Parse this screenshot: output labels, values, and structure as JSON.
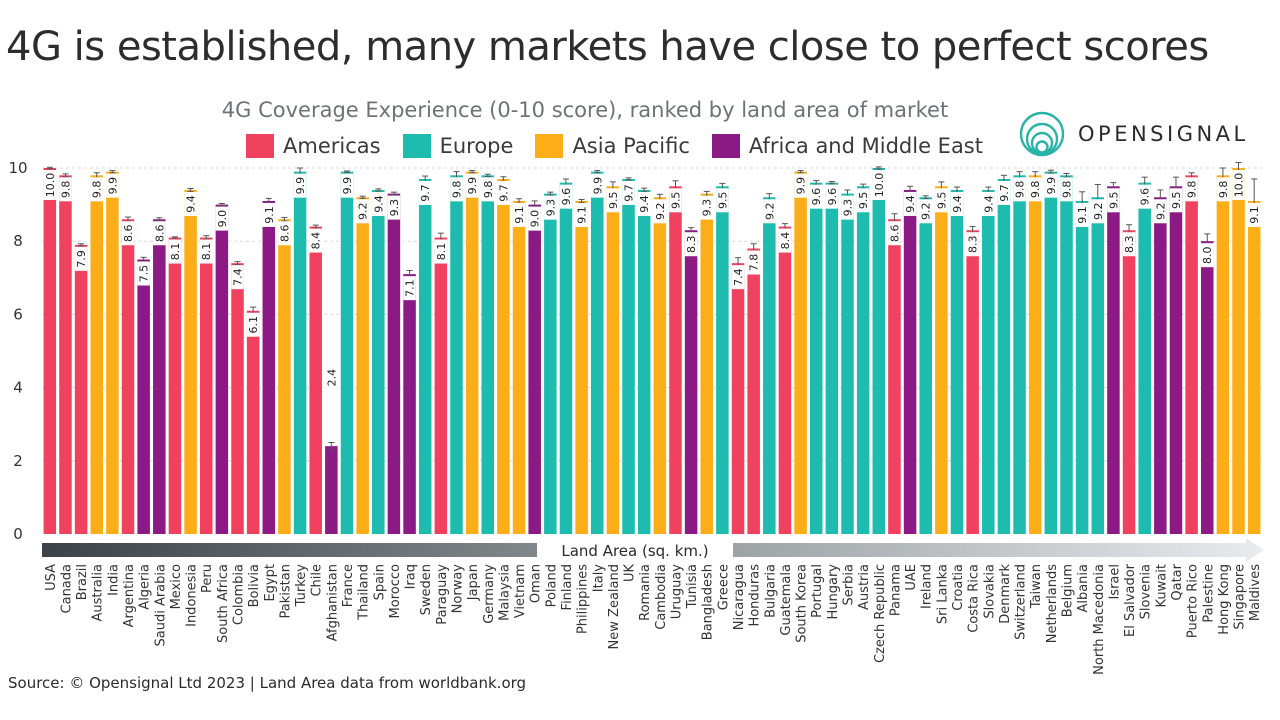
{
  "title": "4G is established, many markets have close to perfect scores",
  "subtitle": "4G Coverage Experience (0-10 score), ranked by land area of market",
  "brand": "OPENSIGNAL",
  "source": "Source: © Opensignal Ltd 2023 | Land Area data from worldbank.org",
  "colors": {
    "americas": "#f0425f",
    "europe": "#1dbcae",
    "asia_pacific": "#fbae17",
    "africa_middle_east": "#8b1a85",
    "error_bar": "#555555",
    "gridline": "#d9d9d9",
    "arrow_dark": "#3c4246",
    "arrow_light": "#e8ecee",
    "logo": "#2ab3a7"
  },
  "chart_data": {
    "type": "bar",
    "title": "4G Coverage Experience (0-10 score), ranked by land area of market",
    "xlabel": "Land Area (sq. km.)",
    "ylabel": "",
    "ylim": [
      0,
      10
    ],
    "yticks": [
      0,
      2,
      4,
      6,
      8,
      10
    ],
    "grid": true,
    "legend_position": "top",
    "legend": [
      {
        "key": "americas",
        "label": "Americas"
      },
      {
        "key": "europe",
        "label": "Europe"
      },
      {
        "key": "asia_pacific",
        "label": "Asia Pacific"
      },
      {
        "key": "africa_middle_east",
        "label": "Africa and Middle East"
      }
    ],
    "bars": [
      {
        "country": "USA",
        "value": 10.0,
        "label": "10.0",
        "region": "americas",
        "err": 0.02
      },
      {
        "country": "Canada",
        "value": 9.8,
        "label": "9.8",
        "region": "americas",
        "err": 0.04
      },
      {
        "country": "Brazil",
        "value": 7.9,
        "label": "7.9",
        "region": "americas",
        "err": 0.03
      },
      {
        "country": "Australia",
        "value": 9.8,
        "label": "9.8",
        "region": "asia_pacific",
        "err": 0.07
      },
      {
        "country": "India",
        "value": 9.9,
        "label": "9.9",
        "region": "asia_pacific",
        "err": 0.03
      },
      {
        "country": "Argentina",
        "value": 8.6,
        "label": "8.6",
        "region": "americas",
        "err": 0.06
      },
      {
        "country": "Algeria",
        "value": 7.5,
        "label": "7.5",
        "region": "africa_middle_east",
        "err": 0.06
      },
      {
        "country": "Saudi Arabia",
        "value": 8.6,
        "label": "8.6",
        "region": "africa_middle_east",
        "err": 0.04
      },
      {
        "country": "Mexico",
        "value": 8.1,
        "label": "8.1",
        "region": "americas",
        "err": 0.02
      },
      {
        "country": "Indonesia",
        "value": 9.4,
        "label": "9.4",
        "region": "asia_pacific",
        "err": 0.04
      },
      {
        "country": "Peru",
        "value": 8.1,
        "label": "8.1",
        "region": "americas",
        "err": 0.05
      },
      {
        "country": "South Africa",
        "value": 9.0,
        "label": "9.0",
        "region": "africa_middle_east",
        "err": 0.03
      },
      {
        "country": "Colombia",
        "value": 7.4,
        "label": "7.4",
        "region": "americas",
        "err": 0.04
      },
      {
        "country": "Bolivia",
        "value": 6.1,
        "label": "6.1",
        "region": "americas",
        "err": 0.1
      },
      {
        "country": "Egypt",
        "value": 9.1,
        "label": "9.1",
        "region": "africa_middle_east",
        "err": 0.07
      },
      {
        "country": "Pakistan",
        "value": 8.6,
        "label": "8.6",
        "region": "asia_pacific",
        "err": 0.05
      },
      {
        "country": "Turkey",
        "value": 9.9,
        "label": "9.9",
        "region": "europe",
        "err": 0.1
      },
      {
        "country": "Chile",
        "value": 8.4,
        "label": "8.4",
        "region": "americas",
        "err": 0.04
      },
      {
        "country": "Afghanistan",
        "value": 2.4,
        "label": "2.4",
        "region": "africa_middle_east",
        "err": 0.1
      },
      {
        "country": "France",
        "value": 9.9,
        "label": "9.9",
        "region": "europe",
        "err": 0.02
      },
      {
        "country": "Thailand",
        "value": 9.2,
        "label": "9.2",
        "region": "asia_pacific",
        "err": 0.03
      },
      {
        "country": "Spain",
        "value": 9.4,
        "label": "9.4",
        "region": "europe",
        "err": 0.03
      },
      {
        "country": "Morocco",
        "value": 9.3,
        "label": "9.3",
        "region": "africa_middle_east",
        "err": 0.04
      },
      {
        "country": "Iraq",
        "value": 7.1,
        "label": "7.1",
        "region": "africa_middle_east",
        "err": 0.1
      },
      {
        "country": "Sweden",
        "value": 9.7,
        "label": "9.7",
        "region": "europe",
        "err": 0.08
      },
      {
        "country": "Paraguay",
        "value": 8.1,
        "label": "8.1",
        "region": "americas",
        "err": 0.12
      },
      {
        "country": "Norway",
        "value": 9.8,
        "label": "9.8",
        "region": "europe",
        "err": 0.1
      },
      {
        "country": "Japan",
        "value": 9.9,
        "label": "9.9",
        "region": "asia_pacific",
        "err": 0.03
      },
      {
        "country": "Germany",
        "value": 9.8,
        "label": "9.8",
        "region": "europe",
        "err": 0.03
      },
      {
        "country": "Malaysia",
        "value": 9.7,
        "label": "9.7",
        "region": "asia_pacific",
        "err": 0.06
      },
      {
        "country": "Vietnam",
        "value": 9.1,
        "label": "9.1",
        "region": "asia_pacific",
        "err": 0.06
      },
      {
        "country": "Oman",
        "value": 9.0,
        "label": "9.0",
        "region": "africa_middle_east",
        "err": 0.1
      },
      {
        "country": "Poland",
        "value": 9.3,
        "label": "9.3",
        "region": "europe",
        "err": 0.04
      },
      {
        "country": "Finland",
        "value": 9.6,
        "label": "9.6",
        "region": "europe",
        "err": 0.1
      },
      {
        "country": "Philippines",
        "value": 9.1,
        "label": "9.1",
        "region": "asia_pacific",
        "err": 0.04
      },
      {
        "country": "Italy",
        "value": 9.9,
        "label": "9.9",
        "region": "europe",
        "err": 0.03
      },
      {
        "country": "New Zealand",
        "value": 9.5,
        "label": "9.5",
        "region": "asia_pacific",
        "err": 0.12
      },
      {
        "country": "UK",
        "value": 9.7,
        "label": "9.7",
        "region": "europe",
        "err": 0.03
      },
      {
        "country": "Romania",
        "value": 9.4,
        "label": "9.4",
        "region": "europe",
        "err": 0.05
      },
      {
        "country": "Cambodia",
        "value": 9.2,
        "label": "9.2",
        "region": "asia_pacific",
        "err": 0.08
      },
      {
        "country": "Uruguay",
        "value": 9.5,
        "label": "9.5",
        "region": "americas",
        "err": 0.15
      },
      {
        "country": "Tunisia",
        "value": 8.3,
        "label": "8.3",
        "region": "africa_middle_east",
        "err": 0.07
      },
      {
        "country": "Bangladesh",
        "value": 9.3,
        "label": "9.3",
        "region": "asia_pacific",
        "err": 0.06
      },
      {
        "country": "Greece",
        "value": 9.5,
        "label": "9.5",
        "region": "europe",
        "err": 0.08
      },
      {
        "country": "Nicaragua",
        "value": 7.4,
        "label": "7.4",
        "region": "americas",
        "err": 0.15
      },
      {
        "country": "Honduras",
        "value": 7.8,
        "label": "7.8",
        "region": "americas",
        "err": 0.13
      },
      {
        "country": "Bulgaria",
        "value": 9.2,
        "label": "9.2",
        "region": "europe",
        "err": 0.1
      },
      {
        "country": "Guatemala",
        "value": 8.4,
        "label": "8.4",
        "region": "americas",
        "err": 0.08
      },
      {
        "country": "South Korea",
        "value": 9.9,
        "label": "9.9",
        "region": "asia_pacific",
        "err": 0.03
      },
      {
        "country": "Portugal",
        "value": 9.6,
        "label": "9.6",
        "region": "europe",
        "err": 0.06
      },
      {
        "country": "Hungary",
        "value": 9.6,
        "label": "9.6",
        "region": "europe",
        "err": 0.03
      },
      {
        "country": "Serbia",
        "value": 9.3,
        "label": "9.3",
        "region": "europe",
        "err": 0.1
      },
      {
        "country": "Austria",
        "value": 9.5,
        "label": "9.5",
        "region": "europe",
        "err": 0.06
      },
      {
        "country": "Czech Republic",
        "value": 10.0,
        "label": "10.0",
        "region": "europe",
        "err": 0.03
      },
      {
        "country": "Panama",
        "value": 8.6,
        "label": "8.6",
        "region": "americas",
        "err": 0.15
      },
      {
        "country": "UAE",
        "value": 9.4,
        "label": "9.4",
        "region": "africa_middle_east",
        "err": 0.1
      },
      {
        "country": "Ireland",
        "value": 9.2,
        "label": "9.2",
        "region": "europe",
        "err": 0.04
      },
      {
        "country": "Sri Lanka",
        "value": 9.5,
        "label": "9.5",
        "region": "asia_pacific",
        "err": 0.12
      },
      {
        "country": "Croatia",
        "value": 9.4,
        "label": "9.4",
        "region": "europe",
        "err": 0.08
      },
      {
        "country": "Costa Rica",
        "value": 8.3,
        "label": "8.3",
        "region": "americas",
        "err": 0.1
      },
      {
        "country": "Slovakia",
        "value": 9.4,
        "label": "9.4",
        "region": "europe",
        "err": 0.08
      },
      {
        "country": "Denmark",
        "value": 9.7,
        "label": "9.7",
        "region": "europe",
        "err": 0.1
      },
      {
        "country": "Switzerland",
        "value": 9.8,
        "label": "9.8",
        "region": "europe",
        "err": 0.1
      },
      {
        "country": "Taiwan",
        "value": 9.8,
        "label": "9.8",
        "region": "asia_pacific",
        "err": 0.1
      },
      {
        "country": "Netherlands",
        "value": 9.9,
        "label": "9.9",
        "region": "europe",
        "err": 0.04
      },
      {
        "country": "Belgium",
        "value": 9.8,
        "label": "9.8",
        "region": "europe",
        "err": 0.05
      },
      {
        "country": "Albania",
        "value": 9.1,
        "label": "9.1",
        "region": "europe",
        "err": 0.25
      },
      {
        "country": "North Macedonia",
        "value": 9.2,
        "label": "9.2",
        "region": "europe",
        "err": 0.35
      },
      {
        "country": "Israel",
        "value": 9.5,
        "label": "9.5",
        "region": "africa_middle_east",
        "err": 0.1
      },
      {
        "country": "El Salvador",
        "value": 8.3,
        "label": "8.3",
        "region": "americas",
        "err": 0.15
      },
      {
        "country": "Slovenia",
        "value": 9.6,
        "label": "9.6",
        "region": "europe",
        "err": 0.15
      },
      {
        "country": "Kuwait",
        "value": 9.2,
        "label": "9.2",
        "region": "africa_middle_east",
        "err": 0.2
      },
      {
        "country": "Qatar",
        "value": 9.5,
        "label": "9.5",
        "region": "africa_middle_east",
        "err": 0.25
      },
      {
        "country": "Puerto Rico",
        "value": 9.8,
        "label": "9.8",
        "region": "americas",
        "err": 0.07
      },
      {
        "country": "Palestine",
        "value": 8.0,
        "label": "8.0",
        "region": "africa_middle_east",
        "err": 0.2
      },
      {
        "country": "Hong Kong",
        "value": 9.8,
        "label": "9.8",
        "region": "asia_pacific",
        "err": 0.2
      },
      {
        "country": "Singapore",
        "value": 10.0,
        "label": "10.0",
        "region": "asia_pacific",
        "err": 0.15
      },
      {
        "country": "Maldives",
        "value": 9.1,
        "label": "9.1",
        "region": "asia_pacific",
        "err": 0.6
      }
    ]
  }
}
